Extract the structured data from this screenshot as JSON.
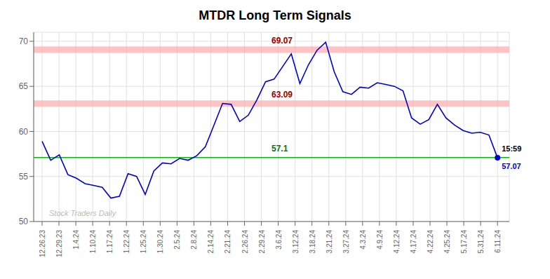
{
  "chart_data": {
    "type": "line",
    "title": "MTDR Long Term Signals",
    "color": "#0000cc",
    "grid": true,
    "x": [
      0,
      0.509434,
      1.018868,
      1.528302,
      2.037736,
      2.54717,
      3.056604,
      3.566038,
      4.075472,
      4.584906,
      5.09434,
      5.603774,
      6.113208,
      6.622642,
      7.132075,
      7.641509,
      8.150943,
      8.660377,
      9.169811,
      9.679245,
      10.188679,
      10.698113,
      11.207547,
      11.716981,
      12.226415,
      12.735849,
      13.245283,
      13.754717,
      14.264151,
      14.773585,
      15.283019,
      15.792453,
      16.301887,
      16.811321,
      17.320755,
      17.830189,
      18.339623,
      18.849057,
      19.358491,
      19.867925,
      20.377358,
      20.886792,
      21.396226,
      21.90566,
      22.415094,
      22.924528,
      23.433962,
      23.943396,
      24.45283,
      24.962264,
      25.471698,
      25.981132,
      26.490566,
      27
    ],
    "values": [
      58.9,
      56.8,
      57.4,
      55.2,
      54.8,
      54.2,
      54.0,
      53.8,
      52.6,
      52.8,
      55.3,
      55.0,
      53.0,
      55.6,
      56.5,
      56.4,
      57.0,
      56.8,
      57.3,
      58.3,
      60.7,
      63.1,
      63.0,
      61.1,
      61.8,
      63.5,
      65.5,
      65.8,
      67.2,
      68.6,
      65.3,
      67.4,
      69.0,
      69.9,
      66.6,
      64.4,
      64.1,
      64.9,
      64.8,
      65.4,
      65.2,
      65.0,
      64.5,
      61.5,
      60.8,
      61.3,
      63.0,
      61.5,
      60.7,
      60.1,
      59.8,
      59.9,
      59.6,
      57.07
    ],
    "xlim": [
      -0.5,
      27.7
    ],
    "xticks": [
      {
        "value": 0,
        "label": "12.26.23"
      },
      {
        "value": 1,
        "label": "12.29.23"
      },
      {
        "value": 2,
        "label": "1.4.24"
      },
      {
        "value": 3,
        "label": "1.10.24"
      },
      {
        "value": 4,
        "label": "1.17.24"
      },
      {
        "value": 5,
        "label": "1.22.24"
      },
      {
        "value": 6,
        "label": "1.25.24"
      },
      {
        "value": 7,
        "label": "1.30.24"
      },
      {
        "value": 8,
        "label": "2.5.24"
      },
      {
        "value": 9,
        "label": "2.8.24"
      },
      {
        "value": 10,
        "label": "2.14.24"
      },
      {
        "value": 11,
        "label": "2.21.24"
      },
      {
        "value": 12,
        "label": "2.26.24"
      },
      {
        "value": 13,
        "label": "2.29.24"
      },
      {
        "value": 14,
        "label": "3.6.24"
      },
      {
        "value": 15,
        "label": "3.12.24"
      },
      {
        "value": 16,
        "label": "3.18.24"
      },
      {
        "value": 17,
        "label": "3.21.24"
      },
      {
        "value": 18,
        "label": "3.27.24"
      },
      {
        "value": 19,
        "label": "4.3.24"
      },
      {
        "value": 20,
        "label": "4.9.24"
      },
      {
        "value": 21,
        "label": "4.12.24"
      },
      {
        "value": 22,
        "label": "4.17.24"
      },
      {
        "value": 23,
        "label": "4.22.24"
      },
      {
        "value": 24,
        "label": "4.25.24"
      },
      {
        "value": 25,
        "label": "5.17.24"
      },
      {
        "value": 26,
        "label": "5.31.24"
      },
      {
        "value": 27,
        "label": "6.11.24"
      }
    ],
    "ylim": [
      50,
      71
    ],
    "yticks": [
      50,
      55,
      60,
      65,
      70
    ],
    "reference_lines": [
      {
        "value": 69.07,
        "color": "#ffaaaa",
        "label": "69.07",
        "label_color": "#990000"
      },
      {
        "value": 63.09,
        "color": "#ffaaaa",
        "label": "63.09",
        "label_color": "#990000"
      },
      {
        "value": 57.1,
        "color": "#00bb00",
        "label": "57.1",
        "label_color": "#007700"
      }
    ],
    "end_marker": {
      "value": 57.07,
      "time_label": "15:59",
      "time_color": "#000000",
      "value_color": "#0000cc"
    },
    "watermark": {
      "text": "Stock Traders Daily",
      "color": "#bbbbbb"
    }
  }
}
